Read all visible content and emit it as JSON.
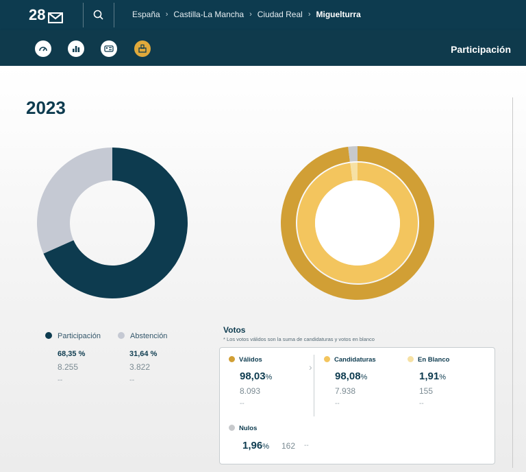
{
  "header": {
    "logo_text": "28",
    "breadcrumbs": [
      "España",
      "Castilla-La Mancha",
      "Ciudad Real"
    ],
    "current": "Miguelturra"
  },
  "subbar": {
    "icons": [
      "speedometer-icon",
      "bar-chart-icon",
      "candidates-icon",
      "ballot-box-icon"
    ],
    "active_icon": "ballot-box-icon",
    "section_title": "Participación"
  },
  "year": "2023",
  "colors": {
    "participacion": "#0d3b4f",
    "abstencion": "#c5c9d3",
    "validos": "#d19f35",
    "candidaturas": "#f3c55e",
    "en_blanco": "#f6e1a4",
    "nulos": "#c7c9cc"
  },
  "participation_legend": [
    {
      "label": "Participación",
      "pct": "68,35 %",
      "count": "8.255",
      "dash": "--"
    },
    {
      "label": "Abstención",
      "pct": "31,64 %",
      "count": "3.822",
      "dash": "--"
    }
  ],
  "votos": {
    "title": "Votos",
    "note": "* Los votos válidos son la suma de candidaturas y votos en blanco",
    "validos": {
      "label": "Válidos",
      "pct": "98,03",
      "unit": "%",
      "count": "8.093",
      "dash": "--"
    },
    "candidaturas": {
      "label": "Candidaturas",
      "pct": "98,08",
      "unit": "%",
      "count": "7.938",
      "dash": "--"
    },
    "en_blanco": {
      "label": "En Blanco",
      "pct": "1,91",
      "unit": "%",
      "count": "155",
      "dash": "--"
    },
    "nulos": {
      "label": "Nulos",
      "pct": "1,96",
      "unit": "%",
      "count": "162",
      "dash": "--"
    }
  },
  "chart_data": [
    {
      "type": "pie",
      "categories": [
        "Participación",
        "Abstención"
      ],
      "values": [
        68.35,
        31.64
      ]
    },
    {
      "type": "pie",
      "series": [
        {
          "values": [
            98.03,
            1.96
          ]
        },
        {
          "values": [
            98.08,
            1.91
          ]
        }
      ],
      "categories_outer": [
        "Válidos",
        "Nulos"
      ],
      "categories_inner": [
        "Candidaturas",
        "En Blanco"
      ]
    }
  ]
}
